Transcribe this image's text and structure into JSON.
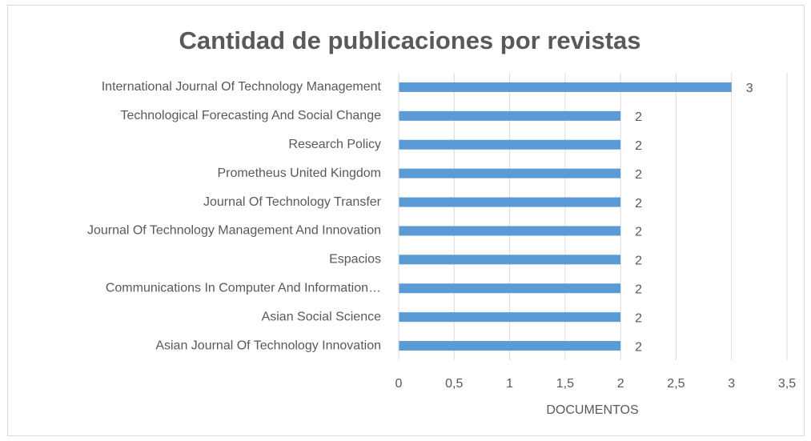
{
  "chart_data": {
    "type": "bar",
    "orientation": "horizontal",
    "title": "Cantidad de publicaciones por revistas",
    "x_label": "DOCUMENTOS",
    "categories": [
      "International Journal Of Technology Management",
      "Technological Forecasting And Social Change",
      "Research Policy",
      "Prometheus United Kingdom",
      "Journal Of Technology Transfer",
      "Journal Of Technology Management And Innovation",
      "Espacios",
      "Communications In Computer And Information…",
      "Asian Social Science",
      "Asian Journal Of Technology Innovation"
    ],
    "values": [
      3,
      2,
      2,
      2,
      2,
      2,
      2,
      2,
      2,
      2
    ],
    "color": "#5b9bd5",
    "xlim": [
      0,
      3.5
    ],
    "xticks": [
      0,
      {
        "value": 0.5,
        "label": "0,5"
      },
      1,
      {
        "value": 1.5,
        "label": "1,5"
      },
      2,
      {
        "value": 2.5,
        "label": "2,5"
      },
      3,
      {
        "value": 3.5,
        "label": "3,5"
      }
    ],
    "grid": true
  }
}
